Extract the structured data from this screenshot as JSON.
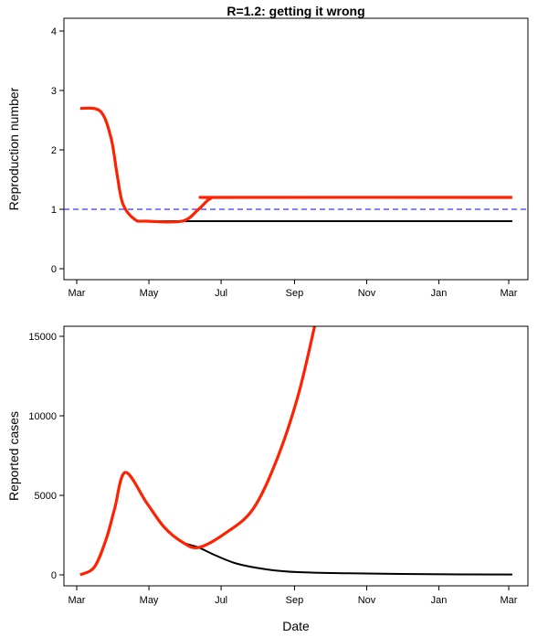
{
  "chart_data": [
    {
      "type": "line",
      "title": "R=1.2: getting it wrong",
      "xlabel": "",
      "ylabel": "Reproduction number",
      "xlim": [
        "2020-03-01",
        "2021-03-01"
      ],
      "ylim": [
        0,
        4
      ],
      "x_ticks": [
        "Mar",
        "May",
        "Jul",
        "Sep",
        "Nov",
        "Jan",
        "Mar"
      ],
      "y_ticks": [
        "0",
        "1",
        "2",
        "3",
        "4"
      ],
      "grid": false,
      "reference_line": {
        "y": 1,
        "color": "#5a5aff",
        "style": "dashed"
      },
      "series": [
        {
          "color": "#000000",
          "points": [
            [
              "2020-03-04",
              2.7
            ],
            [
              "2020-03-21",
              2.65
            ],
            [
              "2020-03-30",
              2.2
            ],
            [
              "2020-04-04",
              1.6
            ],
            [
              "2020-04-09",
              1.09
            ],
            [
              "2020-04-19",
              0.83
            ],
            [
              "2020-04-29",
              0.8
            ],
            [
              "2020-05-29",
              0.8
            ],
            [
              "2021-03-04",
              0.8
            ]
          ]
        },
        {
          "color": "#ff2200",
          "points": [
            [
              "2020-03-04",
              2.7
            ],
            [
              "2020-03-21",
              2.65
            ],
            [
              "2020-03-30",
              2.2
            ],
            [
              "2020-04-04",
              1.6
            ],
            [
              "2020-04-09",
              1.09
            ],
            [
              "2020-04-19",
              0.83
            ],
            [
              "2020-04-29",
              0.8
            ],
            [
              "2020-05-29",
              0.8
            ],
            [
              "2020-06-12",
              1.0
            ],
            [
              "2020-06-22",
              1.18
            ],
            [
              "2020-07-05",
              1.2
            ],
            [
              "2021-03-04",
              1.2
            ]
          ]
        }
      ]
    },
    {
      "type": "line",
      "title": "",
      "xlabel": "Date",
      "ylabel": "Reported cases",
      "xlim": [
        "2020-03-01",
        "2021-03-01"
      ],
      "ylim": [
        0,
        15600
      ],
      "x_ticks": [
        "Mar",
        "May",
        "Jul",
        "Sep",
        "Nov",
        "Jan",
        "Mar"
      ],
      "y_ticks": [
        "0",
        "5000",
        "10000",
        "15000"
      ],
      "grid": false,
      "series": [
        {
          "color": "#000000",
          "points": [
            [
              "2020-03-04",
              0
            ],
            [
              "2020-03-16",
              500
            ],
            [
              "2020-03-26",
              2270
            ],
            [
              "2020-04-02",
              4150
            ],
            [
              "2020-04-11",
              6440
            ],
            [
              "2020-04-29",
              4540
            ],
            [
              "2020-05-14",
              2990
            ],
            [
              "2020-05-29",
              2070
            ],
            [
              "2020-06-12",
              1720
            ],
            [
              "2020-06-27",
              1200
            ],
            [
              "2020-07-15",
              690
            ],
            [
              "2020-08-09",
              340
            ],
            [
              "2020-09-04",
              170
            ],
            [
              "2020-10-15",
              100
            ],
            [
              "2020-12-24",
              40
            ],
            [
              "2021-03-04",
              20
            ]
          ]
        },
        {
          "color": "#ff2200",
          "points": [
            [
              "2020-03-04",
              0
            ],
            [
              "2020-03-16",
              500
            ],
            [
              "2020-03-26",
              2270
            ],
            [
              "2020-04-02",
              4150
            ],
            [
              "2020-04-11",
              6440
            ],
            [
              "2020-04-29",
              4540
            ],
            [
              "2020-05-14",
              2990
            ],
            [
              "2020-05-29",
              2070
            ],
            [
              "2020-06-12",
              1720
            ],
            [
              "2020-07-05",
              2640
            ],
            [
              "2020-07-28",
              4140
            ],
            [
              "2020-08-17",
              7240
            ],
            [
              "2020-09-04",
              11260
            ],
            [
              "2020-09-18",
              15630
            ]
          ]
        }
      ]
    }
  ]
}
